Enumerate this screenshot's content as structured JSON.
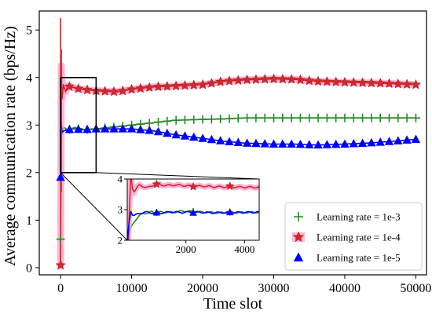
{
  "chart_data": {
    "type": "line",
    "xlabel": "Time slot",
    "ylabel": "Average communication rate (bps/Hz)",
    "xlim": [
      -3000,
      51500
    ],
    "ylim": [
      -0.15,
      5.4
    ],
    "xticks": [
      0,
      10000,
      20000,
      30000,
      40000,
      50000
    ],
    "yticks": [
      0,
      1,
      2,
      3,
      4,
      5
    ],
    "grid": false,
    "legend_position": "bottom-right",
    "series": [
      {
        "name": "Learning rate = 1e-3",
        "color": "#228b22",
        "marker": "plus",
        "marker_every": 1250,
        "x": [
          0,
          100,
          200,
          500,
          1000,
          2000,
          3000,
          5000,
          7000,
          10000,
          13000,
          16000,
          20000,
          23000,
          26000,
          30000,
          35000,
          40000,
          45000,
          50000
        ],
        "y": [
          0.6,
          2.9,
          2.8,
          2.95,
          2.9,
          2.95,
          2.9,
          2.92,
          2.95,
          3.0,
          3.05,
          3.1,
          3.12,
          3.13,
          3.15,
          3.15,
          3.15,
          3.15,
          3.15,
          3.15
        ]
      },
      {
        "name": "Learning rate = 1e-4",
        "color": "#d62728",
        "glow": "#ff9ecf",
        "marker": "star",
        "marker_every": 1250,
        "x": [
          0,
          100,
          200,
          400,
          700,
          1000,
          2000,
          3000,
          5000,
          8000,
          10000,
          13000,
          16000,
          20000,
          23000,
          26000,
          30000,
          33000,
          36000,
          40000,
          45000,
          50000
        ],
        "y": [
          0.05,
          4.25,
          3.55,
          3.85,
          3.7,
          3.82,
          3.78,
          3.75,
          3.72,
          3.7,
          3.75,
          3.8,
          3.82,
          3.85,
          3.92,
          3.95,
          3.97,
          3.96,
          3.92,
          3.9,
          3.88,
          3.85
        ]
      },
      {
        "name": "Learning rate = 1e-5",
        "color": "#0000ff",
        "marker": "triangle",
        "marker_every": 1250,
        "x": [
          0,
          100,
          200,
          500,
          1000,
          2000,
          3000,
          5000,
          7000,
          10000,
          13000,
          16000,
          20000,
          23000,
          26000,
          30000,
          33000,
          36000,
          40000,
          43000,
          46000,
          50000
        ],
        "y": [
          1.9,
          3.05,
          2.85,
          2.88,
          2.9,
          2.92,
          2.9,
          2.92,
          2.92,
          2.92,
          2.88,
          2.8,
          2.72,
          2.66,
          2.62,
          2.6,
          2.6,
          2.58,
          2.6,
          2.62,
          2.65,
          2.7
        ]
      }
    ],
    "spikes": [
      {
        "series": 1,
        "x": 0,
        "ymin": 0.05,
        "ymax": 5.25
      },
      {
        "series": 1,
        "x": 100,
        "ymin": 1.6,
        "ymax": 4.6
      }
    ],
    "zoom_box": {
      "xlim": [
        0,
        5000
      ],
      "ylim": [
        2,
        4
      ]
    },
    "inset": {
      "xlim": [
        0,
        4500
      ],
      "ylim": [
        2,
        4
      ],
      "xticks": [
        2000,
        4000
      ],
      "yticks": [
        2,
        3,
        4
      ]
    }
  }
}
